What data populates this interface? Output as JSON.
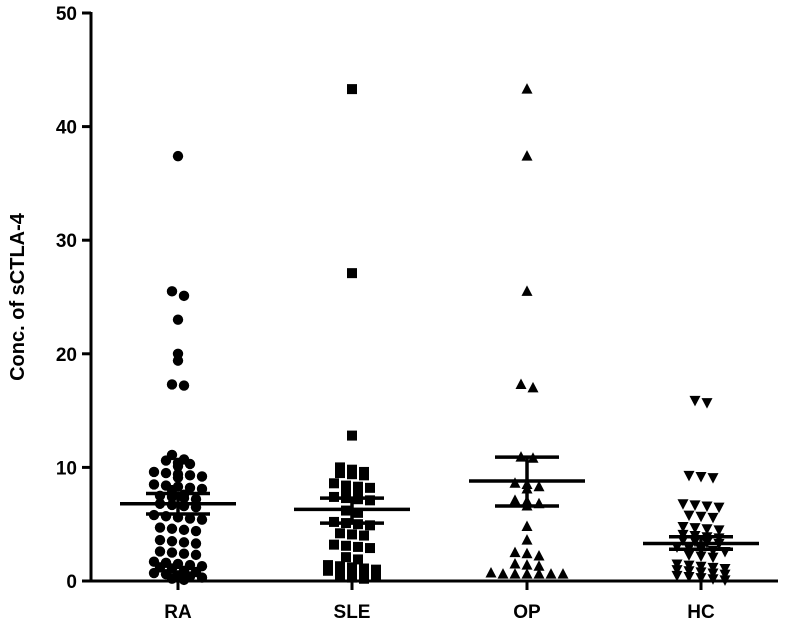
{
  "chart_data": {
    "type": "scatter",
    "title": "",
    "xlabel": "",
    "ylabel": "Conc. of sCTLA-4",
    "ylim": [
      0,
      50
    ],
    "yticks": [
      "0",
      "10",
      "20",
      "30",
      "40",
      "50"
    ],
    "grid": false,
    "categories": [
      "RA",
      "SLE",
      "OP",
      "HC"
    ],
    "series": [
      {
        "category": "RA",
        "marker": "circle",
        "mean": 6.8,
        "sem_low": 5.9,
        "sem_high": 7.7,
        "values": [
          37.4,
          25.5,
          25.1,
          23.0,
          20.0,
          19.4,
          17.3,
          17.2,
          11.1,
          10.7,
          10.6,
          10.4,
          10.3,
          10.1,
          9.6,
          9.5,
          9.4,
          9.3,
          9.2,
          9.1,
          8.5,
          8.4,
          8.3,
          8.2,
          8.1,
          8.0,
          7.6,
          7.5,
          7.4,
          7.3,
          7.2,
          6.8,
          6.7,
          6.6,
          6.5,
          5.8,
          5.7,
          5.6,
          5.5,
          5.4,
          4.7,
          4.6,
          4.5,
          4.4,
          3.6,
          3.5,
          3.4,
          3.3,
          2.6,
          2.5,
          2.4,
          2.3,
          1.7,
          1.6,
          1.5,
          1.4,
          1.3,
          1.2,
          1.1,
          0.9,
          0.8,
          0.7,
          0.6,
          0.5,
          0.4,
          0.3,
          0.2,
          0.1
        ]
      },
      {
        "category": "SLE",
        "marker": "square",
        "mean": 6.3,
        "sem_low": 5.1,
        "sem_high": 7.3,
        "values": [
          43.3,
          27.1,
          12.8,
          10.0,
          9.8,
          9.6,
          9.5,
          9.4,
          9.3,
          8.6,
          8.4,
          8.3,
          8.2,
          8.1,
          8.0,
          7.4,
          7.3,
          7.2,
          7.1,
          6.2,
          6.0,
          5.2,
          5.1,
          5.0,
          4.9,
          4.2,
          4.1,
          4.0,
          3.2,
          3.1,
          3.0,
          2.9,
          2.1,
          1.9,
          1.4,
          1.3,
          1.2,
          1.1,
          1.0,
          0.9,
          0.8,
          0.7,
          0.6,
          0.5,
          0.4,
          0.3,
          0.2
        ]
      },
      {
        "category": "OP",
        "marker": "triangle-up",
        "mean": 8.8,
        "sem_low": 6.6,
        "sem_high": 10.9,
        "values": [
          43.3,
          37.4,
          25.5,
          17.3,
          17.0,
          10.9,
          10.8,
          8.6,
          8.5,
          8.3,
          8.1,
          7.1,
          7.0,
          6.8,
          6.6,
          4.8,
          3.6,
          2.5,
          2.4,
          2.2,
          1.5,
          1.4,
          1.3,
          0.7,
          0.6,
          0.6,
          0.6,
          0.6,
          0.6,
          0.6
        ]
      },
      {
        "category": "HC",
        "marker": "triangle-down",
        "mean": 3.3,
        "sem_low": 2.8,
        "sem_high": 3.9,
        "values": [
          15.9,
          15.7,
          9.3,
          9.2,
          9.1,
          6.8,
          6.7,
          6.6,
          6.5,
          5.8,
          5.7,
          5.6,
          4.8,
          4.7,
          4.6,
          4.5,
          4.1,
          4.0,
          3.9,
          3.8,
          3.6,
          3.5,
          3.4,
          3.3,
          3.0,
          2.9,
          2.8,
          2.7,
          2.6,
          2.3,
          2.2,
          2.1,
          1.5,
          1.4,
          1.3,
          1.2,
          1.1,
          1.0,
          0.9,
          0.8,
          0.7,
          0.6,
          0.5,
          0.4,
          0.3,
          0.2,
          0.1
        ]
      }
    ]
  }
}
